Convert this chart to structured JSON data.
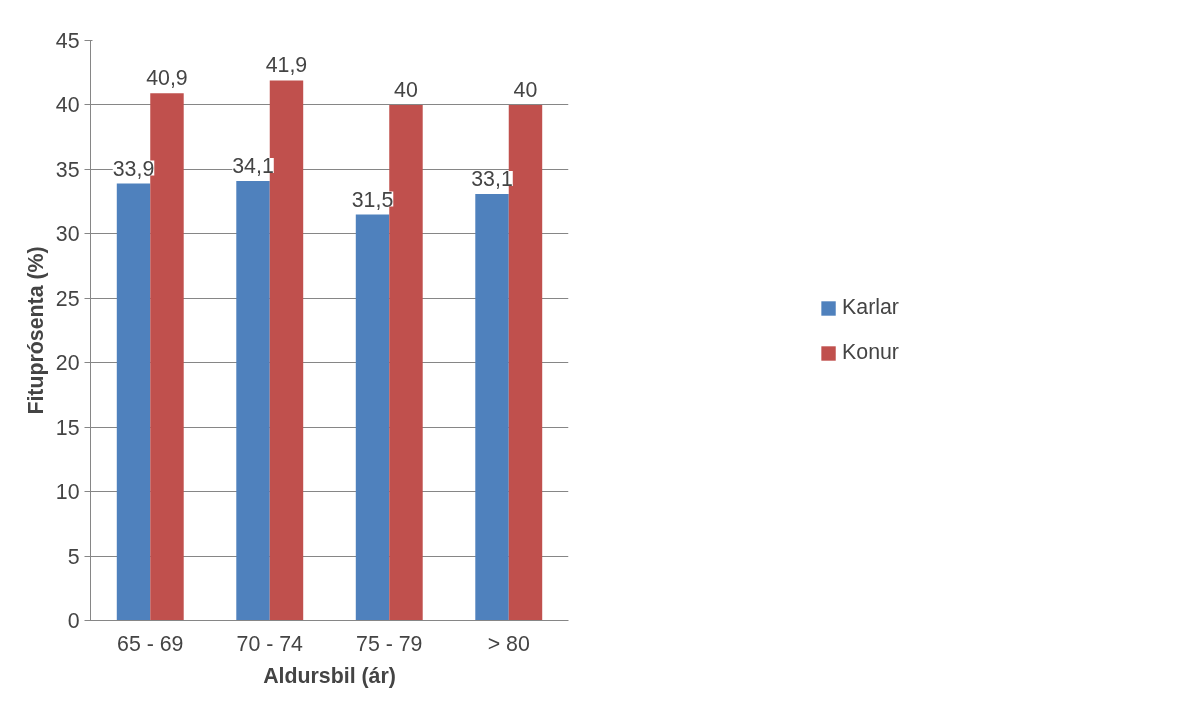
{
  "chart_data": {
    "type": "bar",
    "xlabel": "Aldursbil (ár)",
    "ylabel": "Fituprósenta (%)",
    "categories": [
      "65 - 69",
      "70 - 74",
      "75 - 79",
      "> 80"
    ],
    "series": [
      {
        "name": "Karlar",
        "color": "#4f81bd",
        "values": [
          33.9,
          34.1,
          31.5,
          33.1
        ],
        "value_labels": [
          "33,9",
          "34,1",
          "31,5",
          "33,1"
        ]
      },
      {
        "name": "Konur",
        "color": "#c0504d",
        "values": [
          40.9,
          41.9,
          40,
          40
        ],
        "value_labels": [
          "40,9",
          "41,9",
          "40",
          "40"
        ]
      }
    ],
    "ylim": [
      0,
      45
    ],
    "yticks": [
      0,
      5,
      10,
      15,
      20,
      25,
      30,
      35,
      40,
      45
    ],
    "grid": "y",
    "legend": "right"
  }
}
